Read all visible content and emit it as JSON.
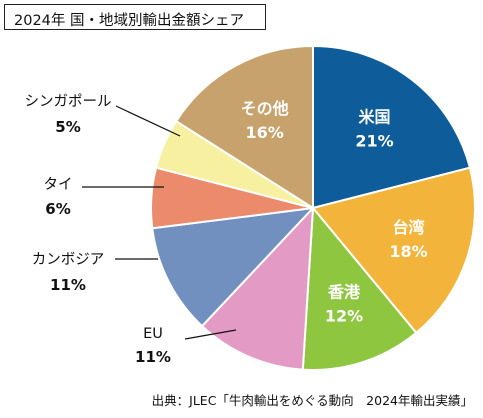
{
  "chart_data": {
    "type": "pie",
    "title": "2024年 国・地域別輸出金額シェア",
    "unit": "%",
    "slices": [
      {
        "name": "米国",
        "value": 21,
        "label": "21%",
        "color": "#0f5c9a",
        "label_pos": "inside"
      },
      {
        "name": "台湾",
        "value": 18,
        "label": "18%",
        "color": "#f3b43c",
        "label_pos": "inside"
      },
      {
        "name": "香港",
        "value": 12,
        "label": "12%",
        "color": "#8ec63f",
        "label_pos": "inside"
      },
      {
        "name": "EU",
        "value": 11,
        "label": "11%",
        "color": "#e39ac4",
        "label_pos": "outside"
      },
      {
        "name": "カンボジア",
        "value": 11,
        "label": "11%",
        "color": "#7190bf",
        "label_pos": "outside"
      },
      {
        "name": "タイ",
        "value": 6,
        "label": "6%",
        "color": "#ec8a6c",
        "label_pos": "outside"
      },
      {
        "name": "シンガポール",
        "value": 5,
        "label": "5%",
        "color": "#f6f0a0",
        "label_pos": "outside"
      },
      {
        "name": "その他",
        "value": 16,
        "label": "16%",
        "color": "#c8a26c",
        "label_pos": "inside"
      }
    ],
    "start": "12 o'clock",
    "direction": "clockwise"
  },
  "source": "出典：JLEC「牛肉輸出をめぐる動向　2024年輸出実績」"
}
